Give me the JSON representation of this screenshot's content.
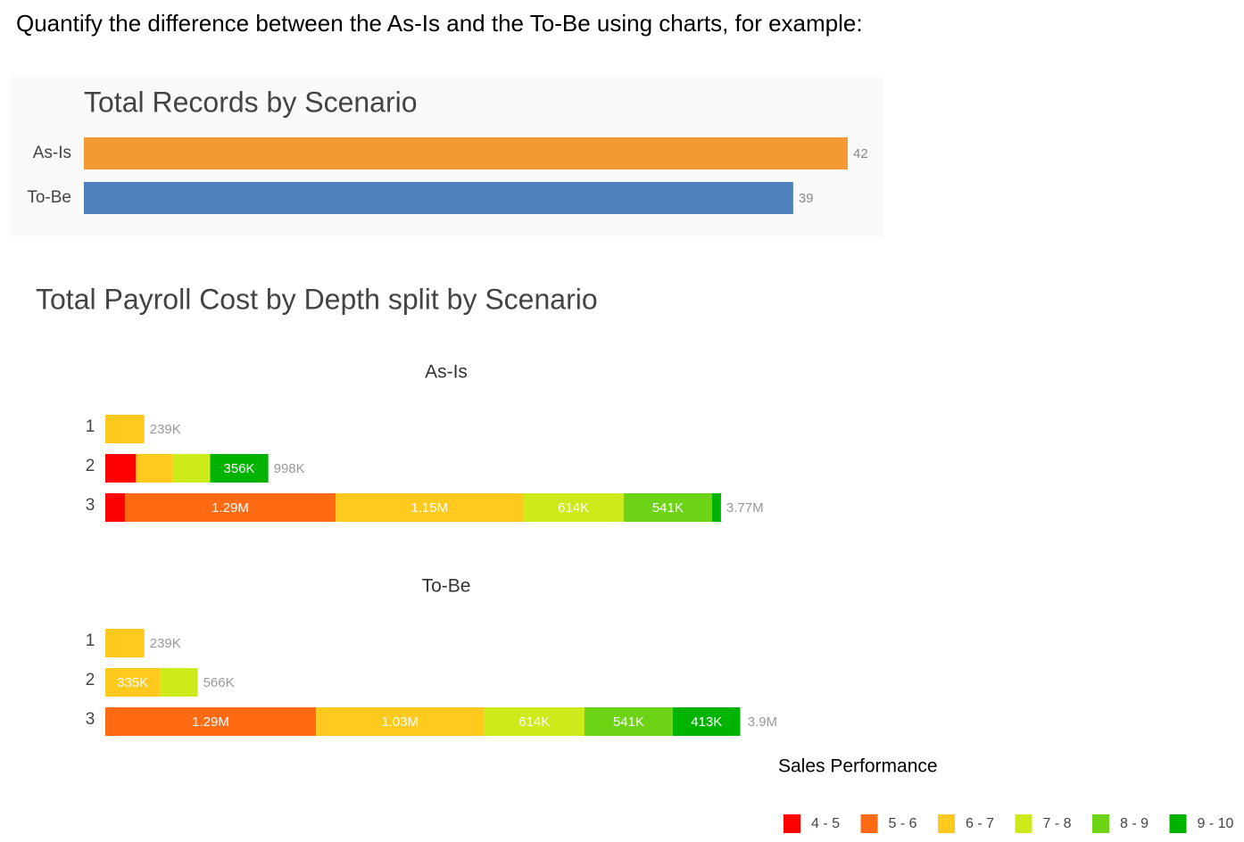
{
  "heading": "Quantify the difference between the As-Is and the To-Be using charts, for example:",
  "chart_data": [
    {
      "type": "hbar",
      "title": "Total Records by Scenario",
      "categories": [
        "As-Is",
        "To-Be"
      ],
      "values": [
        42,
        39
      ],
      "colors": [
        "#f39a33",
        "#4f81bd"
      ]
    },
    {
      "type": "stacked_hbar",
      "title": "Total Payroll Cost by Depth split by Scenario",
      "legend_title": "Sales Performance",
      "series": [
        {
          "name": "4 - 5",
          "color": "#ff0000"
        },
        {
          "name": "5 - 6",
          "color": "#ff6a13"
        },
        {
          "name": "6 - 7",
          "color": "#ffc91e"
        },
        {
          "name": "7 - 8",
          "color": "#cdea1a"
        },
        {
          "name": "8 - 9",
          "color": "#6cd414"
        },
        {
          "name": "9 - 10",
          "color": "#00b300"
        }
      ],
      "panels": [
        {
          "title": "As-Is",
          "categories": [
            "1",
            "2",
            "3"
          ],
          "values": [
            [
              null,
              188000,
              120000
            ],
            [
              null,
              null,
              1290000
            ],
            [
              239000,
              224000,
              1150000
            ],
            [
              null,
              230000,
              614000
            ],
            [
              null,
              null,
              541000
            ],
            [
              null,
              356000,
              55000
            ]
          ],
          "value_labels": [
            [
              null,
              null,
              null
            ],
            [
              null,
              null,
              "1.29M"
            ],
            [
              null,
              null,
              "1.15M"
            ],
            [
              null,
              null,
              "614K"
            ],
            [
              null,
              null,
              "541K"
            ],
            [
              null,
              "356K",
              null
            ]
          ],
          "totals": [
            239000,
            998000,
            3770000
          ],
          "total_labels": [
            "239K",
            "998K",
            "3.77M"
          ]
        },
        {
          "title": "To-Be",
          "categories": [
            "1",
            "2",
            "3"
          ],
          "values": [
            [
              null,
              null,
              null
            ],
            [
              null,
              null,
              1290000
            ],
            [
              239000,
              335000,
              1030000
            ],
            [
              null,
              231000,
              614000
            ],
            [
              null,
              null,
              541000
            ],
            [
              null,
              null,
              413000
            ]
          ],
          "value_labels": [
            [
              null,
              null,
              null
            ],
            [
              null,
              null,
              "1.29M"
            ],
            [
              null,
              "335K",
              "1.03M"
            ],
            [
              null,
              null,
              "614K"
            ],
            [
              null,
              null,
              "541K"
            ],
            [
              null,
              null,
              "413K"
            ]
          ],
          "totals": [
            239000,
            566000,
            3900000
          ],
          "total_labels": [
            "239K",
            "566K",
            "3.9M"
          ]
        }
      ]
    }
  ]
}
